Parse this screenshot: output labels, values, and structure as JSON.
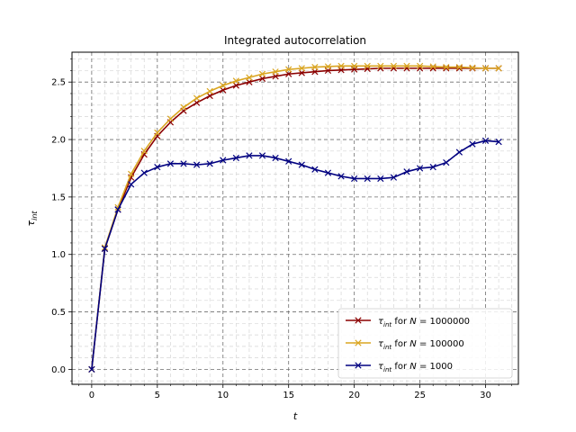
{
  "chart_data": {
    "type": "line",
    "title": "Integrated autocorrelation",
    "xlabel": "t",
    "ylabel": "τ",
    "ylabel_sub": "int",
    "xlim": [
      -1.5,
      32.5
    ],
    "ylim": [
      -0.13,
      2.76
    ],
    "xticks": [
      0,
      5,
      10,
      15,
      20,
      25,
      30
    ],
    "yticks": [
      0.0,
      0.5,
      1.0,
      1.5,
      2.0,
      2.5
    ],
    "xtick_labels": [
      "0",
      "5",
      "10",
      "15",
      "20",
      "25",
      "30"
    ],
    "ytick_labels": [
      "0.0",
      "0.5",
      "1.0",
      "1.5",
      "2.0",
      "2.5"
    ],
    "grid": true,
    "legend_position": "lower-right",
    "x": [
      0,
      1,
      2,
      3,
      4,
      5,
      6,
      7,
      8,
      9,
      10,
      11,
      12,
      13,
      14,
      15,
      16,
      17,
      18,
      19,
      20,
      21,
      22,
      23,
      24,
      25,
      26,
      27,
      28,
      29,
      30,
      31
    ],
    "series": [
      {
        "name": "τint for N = 1000000",
        "legend": {
          "pre": "τ",
          "sub": "int",
          "mid": " for ",
          "var": "N",
          "post": " = 1000000"
        },
        "color": "#8b0000",
        "values": [
          0.0,
          1.05,
          1.39,
          1.67,
          1.87,
          2.03,
          2.15,
          2.25,
          2.32,
          2.38,
          2.43,
          2.47,
          2.5,
          2.53,
          2.55,
          2.57,
          2.58,
          2.59,
          2.6,
          2.605,
          2.61,
          2.615,
          2.62,
          2.62,
          2.62,
          2.62,
          2.62,
          2.62,
          2.62,
          2.62,
          2.62,
          2.62
        ]
      },
      {
        "name": "τint for N = 100000",
        "legend": {
          "pre": "τ",
          "sub": "int",
          "mid": " for ",
          "var": "N",
          "post": " = 100000"
        },
        "color": "#daa520",
        "values": [
          0.0,
          1.06,
          1.41,
          1.7,
          1.9,
          2.06,
          2.18,
          2.28,
          2.36,
          2.42,
          2.47,
          2.51,
          2.54,
          2.57,
          2.59,
          2.61,
          2.62,
          2.63,
          2.635,
          2.64,
          2.64,
          2.64,
          2.64,
          2.64,
          2.64,
          2.64,
          2.635,
          2.63,
          2.63,
          2.625,
          2.62,
          2.62
        ]
      },
      {
        "name": "τint for N = 1000",
        "legend": {
          "pre": "τ",
          "sub": "int",
          "mid": " for ",
          "var": "N",
          "post": " = 1000"
        },
        "color": "#000080",
        "values": [
          0.0,
          1.05,
          1.39,
          1.61,
          1.71,
          1.76,
          1.79,
          1.79,
          1.78,
          1.79,
          1.82,
          1.84,
          1.86,
          1.86,
          1.84,
          1.81,
          1.78,
          1.74,
          1.71,
          1.68,
          1.66,
          1.66,
          1.66,
          1.67,
          1.72,
          1.75,
          1.76,
          1.8,
          1.89,
          1.96,
          1.99,
          1.98
        ]
      }
    ]
  }
}
